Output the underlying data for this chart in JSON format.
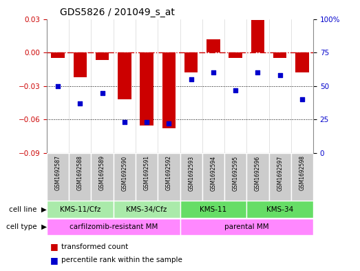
{
  "title": "GDS5826 / 201049_s_at",
  "samples": [
    "GSM1692587",
    "GSM1692588",
    "GSM1692589",
    "GSM1692590",
    "GSM1692591",
    "GSM1692592",
    "GSM1692593",
    "GSM1692594",
    "GSM1692595",
    "GSM1692596",
    "GSM1692597",
    "GSM1692598"
  ],
  "transformed_count": [
    -0.005,
    -0.022,
    -0.007,
    -0.042,
    -0.065,
    -0.068,
    -0.018,
    0.012,
    -0.005,
    0.029,
    -0.005,
    -0.018
  ],
  "percentile_rank": [
    50,
    37,
    45,
    23,
    23,
    22,
    55,
    60,
    47,
    60,
    58,
    40
  ],
  "cell_lines": [
    {
      "label": "KMS-11/Cfz",
      "start": 0,
      "end": 2,
      "color": "#aaeaaa"
    },
    {
      "label": "KMS-34/Cfz",
      "start": 3,
      "end": 5,
      "color": "#aaeaaa"
    },
    {
      "label": "KMS-11",
      "start": 6,
      "end": 8,
      "color": "#66dd66"
    },
    {
      "label": "KMS-34",
      "start": 9,
      "end": 11,
      "color": "#66dd66"
    }
  ],
  "cell_types": [
    {
      "label": "carfilzomib-resistant MM",
      "start": 0,
      "end": 5,
      "color": "#ff88ff"
    },
    {
      "label": "parental MM",
      "start": 6,
      "end": 11,
      "color": "#ff88ff"
    }
  ],
  "ylim_left": [
    -0.09,
    0.03
  ],
  "ylim_right": [
    0,
    100
  ],
  "yticks_left": [
    -0.09,
    -0.06,
    -0.03,
    0,
    0.03
  ],
  "yticks_right": [
    0,
    25,
    50,
    75,
    100
  ],
  "bar_color": "#cc0000",
  "scatter_color": "#0000cc",
  "hline_color": "#cc0000",
  "dotted_line_color": "#000000",
  "gsm_bg_color": "#cccccc",
  "gsm_border_color": "#ffffff"
}
